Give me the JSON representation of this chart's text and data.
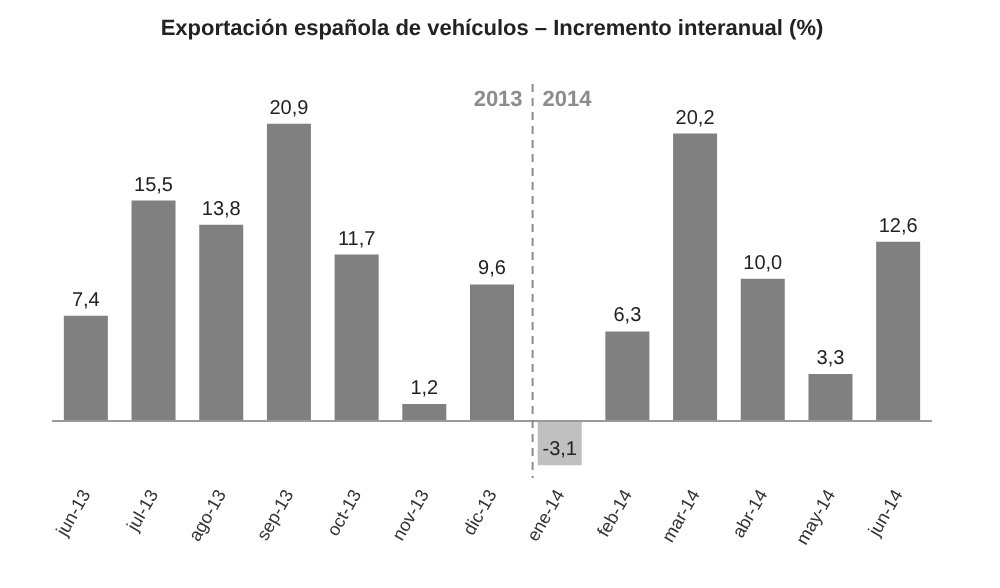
{
  "chart_data": {
    "type": "bar",
    "title": "Exportación española de vehículos – Incremento interanual (%)",
    "categories": [
      "jun-13",
      "jul-13",
      "ago-13",
      "sep-13",
      "oct-13",
      "nov-13",
      "dic-13",
      "ene-14",
      "feb-14",
      "mar-14",
      "abr-14",
      "may-14",
      "jun-14"
    ],
    "values": [
      7.4,
      15.5,
      13.8,
      20.9,
      11.7,
      1.2,
      9.6,
      -3.1,
      6.3,
      20.2,
      10.0,
      3.3,
      12.6
    ],
    "value_labels": [
      "7,4",
      "15,5",
      "13,8",
      "20,9",
      "11,7",
      "1,2",
      "9,6",
      "-3,1",
      "6,3",
      "20,2",
      "10,0",
      "3,3",
      "12,6"
    ],
    "colors": [
      "#808080",
      "#808080",
      "#808080",
      "#808080",
      "#808080",
      "#808080",
      "#808080",
      "#c0c0c0",
      "#808080",
      "#808080",
      "#808080",
      "#808080",
      "#808080"
    ],
    "ref_lines": [
      {
        "axis": "x",
        "value": "ene-14",
        "color": "#8c8c8c",
        "line_style": "dashed"
      }
    ],
    "annotations": [
      "2013",
      "2014"
    ]
  }
}
